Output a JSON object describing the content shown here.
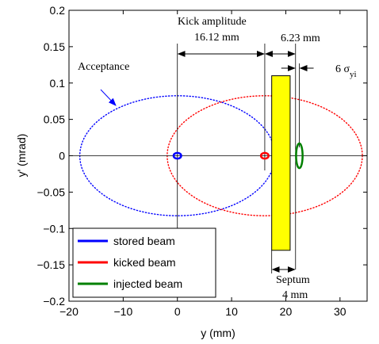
{
  "chart_data": {
    "type": "scatter",
    "xlabel": "y (mm)",
    "ylabel": "y' (mrad)",
    "xlim": [
      -20,
      35
    ],
    "ylim": [
      -0.2,
      0.2
    ],
    "x_ticks": [
      "−20",
      "−10",
      "0",
      "10",
      "20",
      "30"
    ],
    "x_tick_values": [
      -20,
      -10,
      0,
      10,
      20,
      30
    ],
    "y_ticks": [
      "0.2",
      "0.15",
      "0.1",
      "0.05",
      "0",
      "−0.05",
      "−0.1",
      "−0.15",
      "−0.2"
    ],
    "y_tick_values": [
      0.2,
      0.15,
      0.1,
      0.05,
      0,
      -0.05,
      -0.1,
      -0.15,
      -0.2
    ],
    "grid": false,
    "legend_position": "bottom-left",
    "series": [
      {
        "name": "stored beam",
        "color": "#0000ff",
        "center": [
          0,
          0
        ],
        "half_width": 0.7,
        "half_height": 0.004
      },
      {
        "name": "kicked beam",
        "color": "#ff0000",
        "center": [
          16.12,
          0
        ],
        "half_width": 0.7,
        "half_height": 0.004
      },
      {
        "name": "injected beam",
        "color": "#008000",
        "center": [
          22.5,
          0
        ],
        "half_width": 0.6,
        "half_height": 0.017
      }
    ],
    "acceptance_ellipses": [
      {
        "color": "#0000ff",
        "center": [
          0,
          0
        ],
        "half_width": 18,
        "half_height": 0.0825
      },
      {
        "color": "#ff0000",
        "center": [
          16.12,
          0
        ],
        "half_width": 18,
        "half_height": 0.0825
      }
    ],
    "septum": {
      "x_start": 17.4,
      "x_end": 20.8,
      "y_bottom": -0.13,
      "y_top": 0.11,
      "fill": "#ffff00"
    },
    "annotations": {
      "acceptance": "Acceptance",
      "kick_amplitude_line1": "Kick amplitude",
      "kick_amplitude_line2": "16.12 mm",
      "septum_gap": "6.23 mm",
      "sigma_prefix": "6 σ",
      "sigma_sub": "yi",
      "septum_line1": "Septum",
      "septum_line2": "4 mm"
    }
  }
}
